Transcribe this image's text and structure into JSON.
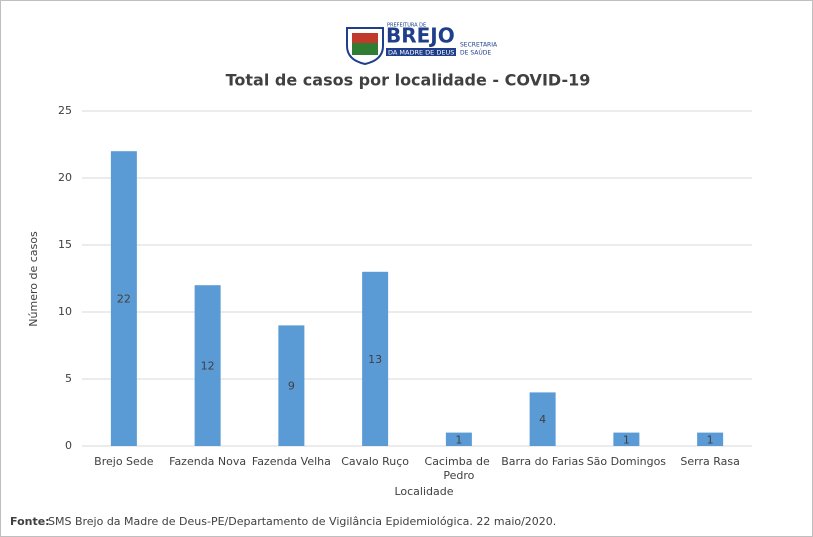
{
  "chart_data": {
    "type": "bar",
    "logo": {
      "top": "PREFEITURA DE",
      "name": "BREJO",
      "sub": "DA MADRE DE DEUS",
      "dept1": "SECRETARIA",
      "dept2": "DE SAÚDE"
    },
    "title": "Total de casos por localidade - COVID-19",
    "x_label": "Localidade",
    "y_label": "Número de casos",
    "categories": [
      "Brejo Sede",
      "Fazenda Nova",
      "Fazenda Velha",
      "Cavalo Ruço",
      "Cacimba de Pedro",
      "Barra do Farias",
      "São Domingos",
      "Serra Rasa"
    ],
    "values": [
      22,
      12,
      9,
      13,
      1,
      4,
      1,
      1
    ],
    "color": "#5b9bd5",
    "ylim": [
      0,
      25
    ],
    "yticks": [
      0,
      5,
      10,
      15,
      20,
      25
    ],
    "grid": true,
    "source_label": "Fonte:",
    "source": "SMS Brejo da Madre de Deus-PE/Departamento de Vigilância Epidemiológica. 22 maio/2020."
  }
}
